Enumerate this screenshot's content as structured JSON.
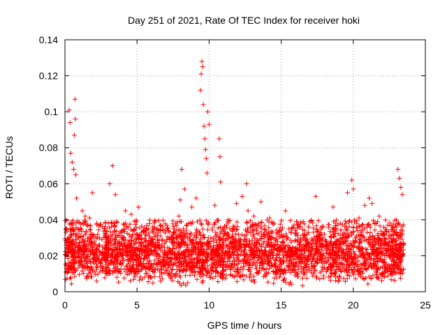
{
  "chart_data": {
    "type": "scatter",
    "title": "Day 251 of 2021, Rate Of TEC Index for receiver hoki",
    "xlabel": "GPS time / hours",
    "ylabel": "ROTI / TECUs",
    "xlim": [
      0,
      25
    ],
    "ylim": [
      0,
      0.14
    ],
    "xticks": [
      0,
      5,
      10,
      15,
      20,
      25
    ],
    "xtick_labels": [
      "0",
      "5",
      "10",
      "15",
      "20",
      "25"
    ],
    "yticks": [
      0,
      0.02,
      0.04,
      0.06,
      0.08,
      0.1,
      0.12,
      0.14
    ],
    "ytick_labels": [
      "0",
      "0.02",
      "0.04",
      "0.06",
      "0.08",
      "0.1",
      "0.12",
      "0.14"
    ],
    "grid": true,
    "marker": "+",
    "color": "#ff0000",
    "series": [
      {
        "name": "ROTI",
        "x": [
          0.1,
          0.3,
          0.35,
          0.4,
          0.5,
          0.6,
          0.65,
          0.7,
          0.72,
          0.75,
          0.8,
          1.2,
          1.4,
          1.7,
          1.9,
          2.2,
          2.6,
          3.1,
          3.3,
          3.5,
          4.2,
          4.6,
          5.1,
          5.3,
          6.2,
          6.8,
          7.4,
          7.9,
          8.0,
          8.1,
          8.3,
          8.8,
          9.1,
          9.4,
          9.45,
          9.5,
          9.55,
          9.6,
          9.65,
          9.7,
          9.75,
          9.8,
          9.85,
          9.9,
          10.0,
          10.4,
          10.7,
          10.75,
          10.8,
          11.3,
          11.9,
          12.3,
          12.6,
          12.7,
          13.1,
          13.6,
          14.2,
          14.5,
          14.9,
          15.3,
          16.2,
          16.9,
          17.4,
          18.0,
          18.6,
          19.1,
          19.6,
          19.9,
          20.0,
          20.4,
          20.8,
          21.1,
          21.3,
          21.8,
          22.4,
          22.9,
          23.1,
          23.2,
          23.3,
          23.4
        ],
        "y": [
          0.035,
          0.101,
          0.094,
          0.077,
          0.072,
          0.068,
          0.087,
          0.107,
          0.096,
          0.065,
          0.052,
          0.045,
          0.042,
          0.041,
          0.055,
          0.038,
          0.036,
          0.06,
          0.07,
          0.054,
          0.045,
          0.043,
          0.047,
          0.033,
          0.036,
          0.034,
          0.031,
          0.042,
          0.051,
          0.068,
          0.057,
          0.047,
          0.052,
          0.112,
          0.121,
          0.128,
          0.125,
          0.104,
          0.092,
          0.085,
          0.079,
          0.074,
          0.066,
          0.1,
          0.093,
          0.048,
          0.085,
          0.075,
          0.061,
          0.039,
          0.049,
          0.053,
          0.06,
          0.045,
          0.042,
          0.05,
          0.041,
          0.038,
          0.034,
          0.045,
          0.037,
          0.036,
          0.053,
          0.032,
          0.047,
          0.038,
          0.055,
          0.062,
          0.057,
          0.041,
          0.048,
          0.052,
          0.049,
          0.042,
          0.037,
          0.033,
          0.068,
          0.063,
          0.058,
          0.054
        ]
      }
    ],
    "dense_band": {
      "x_range": [
        0,
        23.5
      ],
      "y_range": [
        0.003,
        0.035
      ],
      "typical": 0.015
    }
  }
}
